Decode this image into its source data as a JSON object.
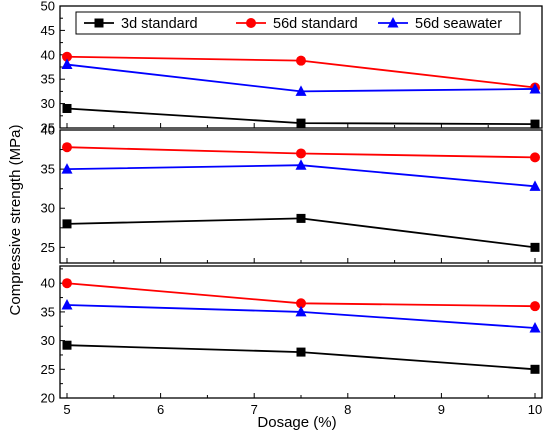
{
  "chart_data": {
    "type": "line",
    "xlabel": "Dosage (%)",
    "ylabel": "Compressive strength (MPa)",
    "xlim": [
      5,
      10
    ],
    "xticks": [
      "5",
      "6",
      "7",
      "8",
      "9",
      "10"
    ],
    "legend": {
      "placement": "top",
      "entries": [
        "3d standard",
        "56d standard",
        "56d seawater"
      ]
    },
    "series_colors": [
      "#000000",
      "#ff0000",
      "#0000ff"
    ],
    "series_markers": [
      "square",
      "circle",
      "triangle"
    ],
    "panels": [
      {
        "ylim": [
          25,
          50
        ],
        "yticks": [
          "25",
          "30",
          "35",
          "40",
          "45",
          "50"
        ],
        "x": [
          5,
          7.5,
          10
        ],
        "series": [
          {
            "name": "3d standard",
            "values": [
              29,
              26,
              25.8
            ]
          },
          {
            "name": "56d standard",
            "values": [
              39.6,
              38.8,
              33.3
            ]
          },
          {
            "name": "56d seawater",
            "values": [
              38,
              32.5,
              33
            ]
          }
        ]
      },
      {
        "ylim": [
          23,
          40
        ],
        "yticks": [
          "25",
          "30",
          "35",
          "40"
        ],
        "x": [
          5,
          7.5,
          10
        ],
        "series": [
          {
            "name": "3d standard",
            "values": [
              28,
              28.7,
              25
            ]
          },
          {
            "name": "56d standard",
            "values": [
              37.8,
              37,
              36.5
            ]
          },
          {
            "name": "56d seawater",
            "values": [
              35,
              35.5,
              32.8
            ]
          }
        ]
      },
      {
        "ylim": [
          20,
          43
        ],
        "yticks": [
          "20",
          "25",
          "30",
          "35",
          "40"
        ],
        "x": [
          5,
          7.5,
          10
        ],
        "series": [
          {
            "name": "3d standard",
            "values": [
              29.2,
              28,
              25
            ]
          },
          {
            "name": "56d standard",
            "values": [
              40,
              36.5,
              36
            ]
          },
          {
            "name": "56d seawater",
            "values": [
              36.2,
              35,
              32.2
            ]
          }
        ]
      }
    ]
  }
}
